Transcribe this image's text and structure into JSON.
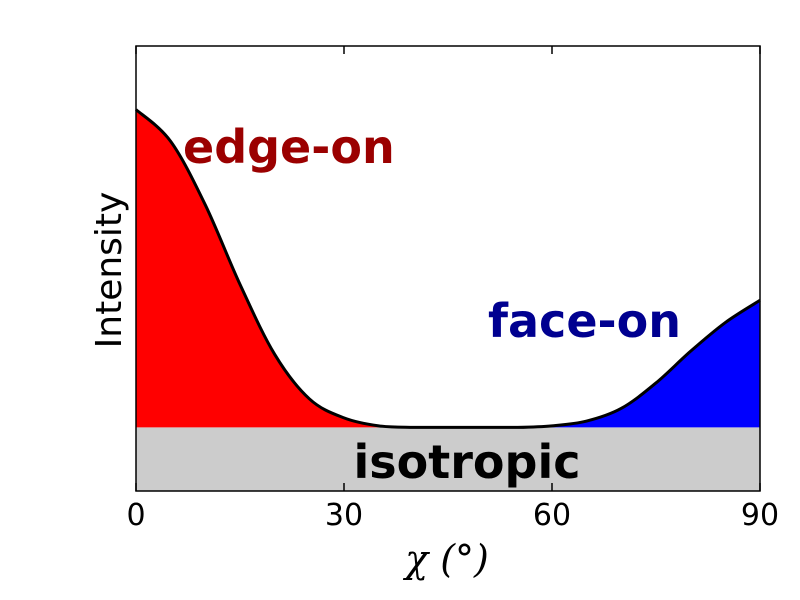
{
  "chart_data": {
    "type": "area",
    "title": "",
    "xlabel": "χ (°)",
    "ylabel": "Intensity",
    "xlim": [
      0,
      90
    ],
    "ylim": [
      -0.2,
      1.2
    ],
    "x_ticks": [
      0,
      30,
      60,
      90
    ],
    "x_tick_labels": [
      "0",
      "30",
      "60",
      "90"
    ],
    "y_ticks": [],
    "grid": false,
    "isotropic_level": 0,
    "curve": {
      "x": [
        0,
        5,
        10,
        15,
        20,
        25,
        30,
        35,
        40,
        45,
        50,
        55,
        60,
        65,
        70,
        75,
        80,
        85,
        90
      ],
      "y": [
        1.0,
        0.9,
        0.7,
        0.45,
        0.23,
        0.09,
        0.03,
        0.005,
        0.0,
        0.0,
        0.0,
        0.0,
        0.005,
        0.02,
        0.06,
        0.14,
        0.24,
        0.33,
        0.4
      ]
    },
    "regions": [
      {
        "label": "edge-on",
        "x_range": [
          0,
          45
        ],
        "color": "#ff0000",
        "text_color": "#9b0000"
      },
      {
        "label": "face-on",
        "x_range": [
          45,
          90
        ],
        "color": "#0000ff",
        "text_color": "#000090"
      },
      {
        "label": "isotropic",
        "color": "#cccccc",
        "text_color": "#000000"
      }
    ]
  }
}
